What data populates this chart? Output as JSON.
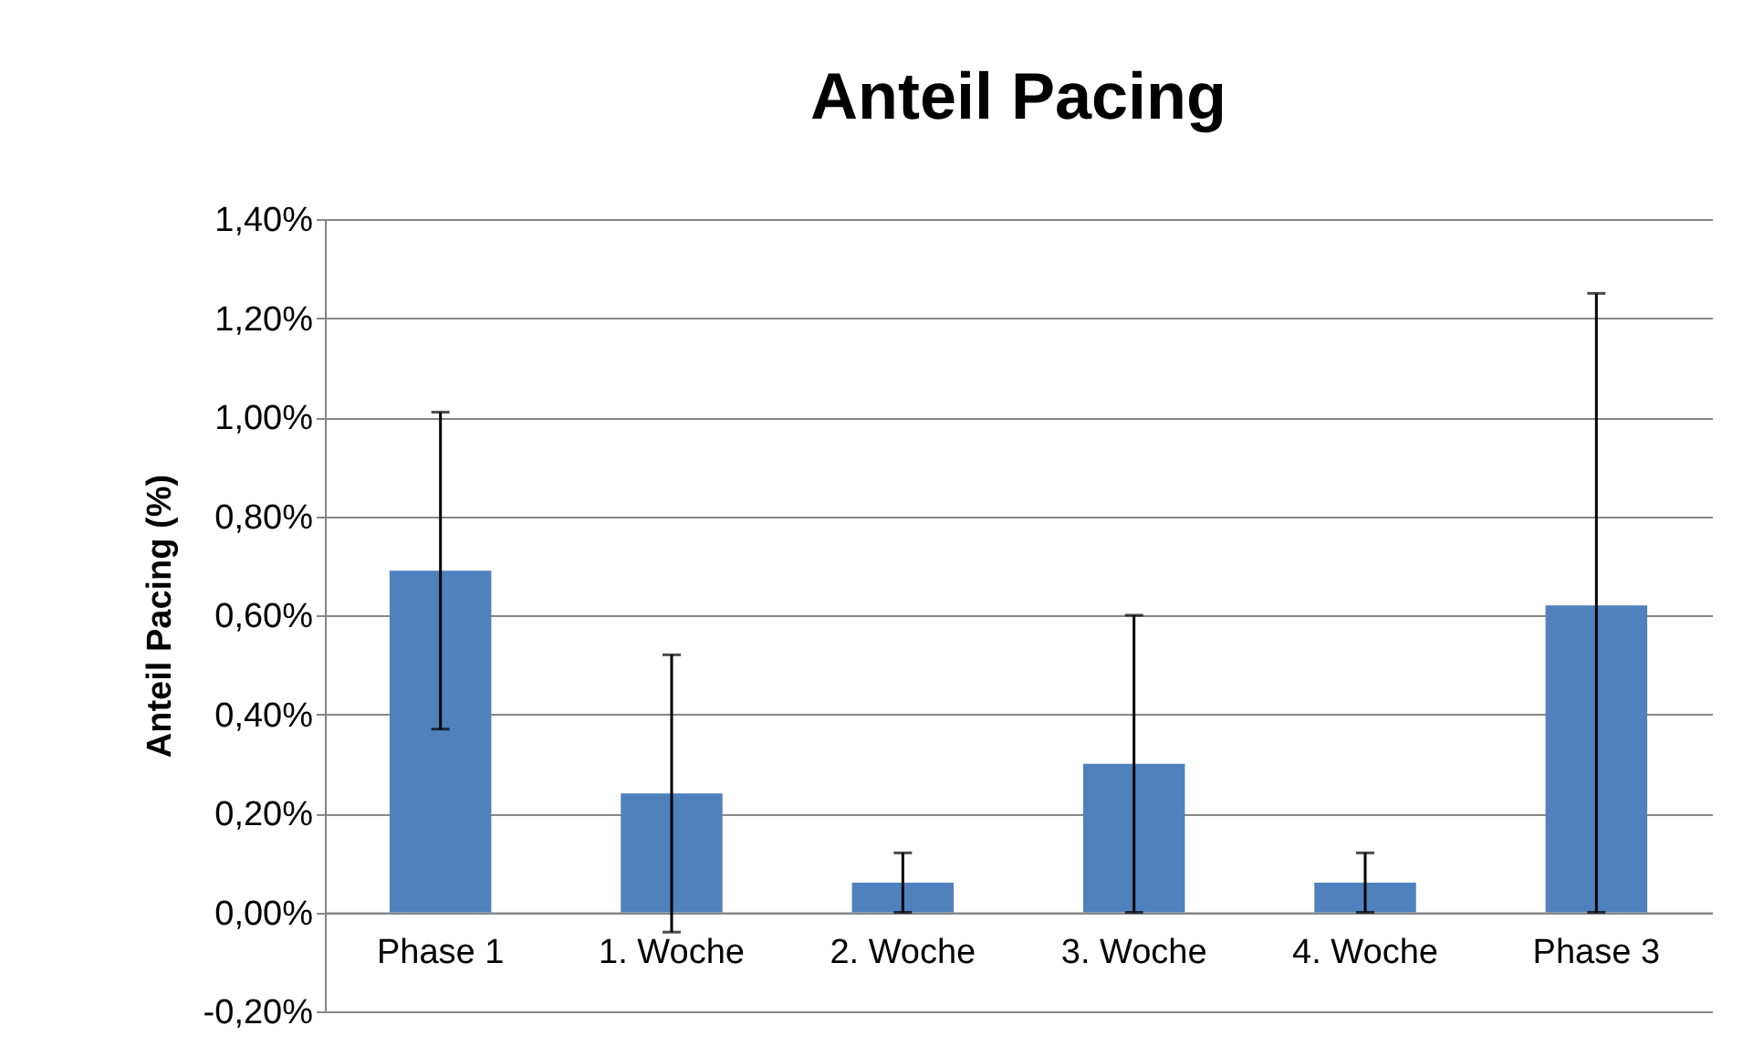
{
  "chart_data": {
    "type": "bar",
    "title": "Anteil Pacing",
    "ylabel": "Anteil Pacing (%)",
    "categories": [
      "Phase 1",
      "1. Woche",
      "2. Woche",
      "3. Woche",
      "4. Woche",
      "Phase 3"
    ],
    "values": [
      0.69,
      0.24,
      0.06,
      0.3,
      0.06,
      0.62
    ],
    "errors": [
      [
        0.37,
        1.01
      ],
      [
        -0.04,
        0.52
      ],
      [
        0,
        0.12
      ],
      [
        0,
        0.6
      ],
      [
        0,
        0.12
      ],
      [
        0,
        1.25
      ]
    ],
    "color": "#4f81bd",
    "ylim": [
      -0.2,
      1.4
    ],
    "yticks": [
      {
        "value": -0.2,
        "label": "-0,20%"
      },
      {
        "value": 0,
        "label": "0,00%"
      },
      {
        "value": 0.2,
        "label": "0,20%"
      },
      {
        "value": 0.4,
        "label": "0,40%"
      },
      {
        "value": 0.6,
        "label": "0,60%"
      },
      {
        "value": 0.8,
        "label": "0,80%"
      },
      {
        "value": 1.0,
        "label": "1,00%"
      },
      {
        "value": 1.2,
        "label": "1,20%"
      },
      {
        "value": 1.4,
        "label": "1,40%"
      }
    ],
    "grid": "y"
  }
}
